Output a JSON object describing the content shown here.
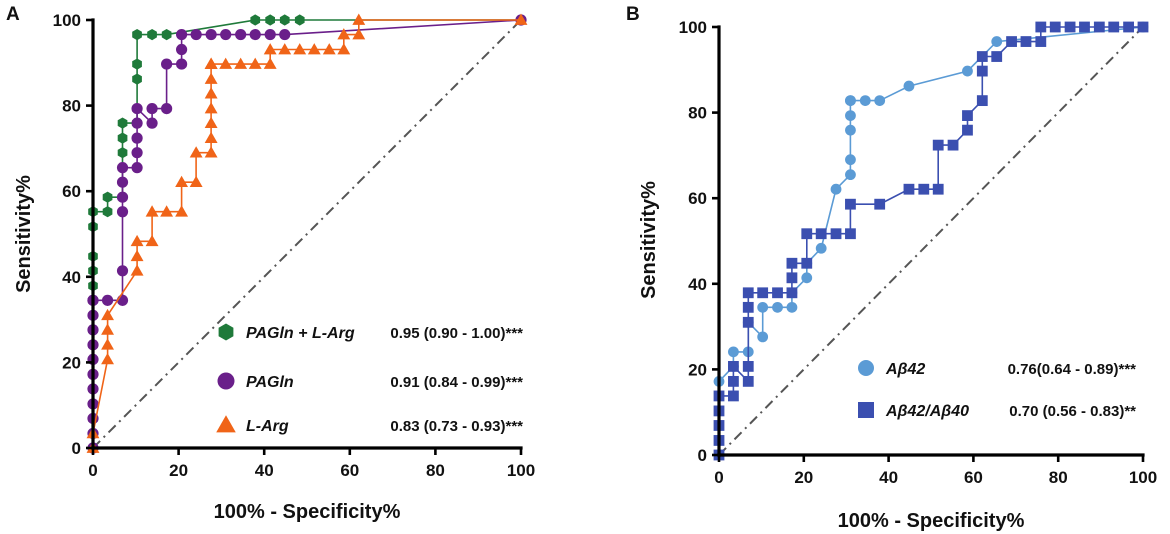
{
  "chart_data": [
    {
      "panel": "A",
      "type": "line",
      "xlabel": "100% - Specificity%",
      "ylabel": "Sensitivity%",
      "xlim": [
        0,
        100
      ],
      "ylim": [
        0,
        100
      ],
      "xticks": [
        "0",
        "20",
        "40",
        "60",
        "80",
        "100"
      ],
      "yticks": [
        "0",
        "20",
        "40",
        "60",
        "80",
        "100"
      ],
      "reference_line": "dash-dot diagonal",
      "legend_position": "bottom-right",
      "series": [
        {
          "name": "PAGln + L-Arg",
          "auc": "0.95 (0.90 - 1.00)***",
          "color": "#1f7a3a",
          "marker": "hexagon",
          "x": [
            0,
            0,
            0,
            0,
            0,
            0,
            0,
            0,
            0,
            0,
            0,
            0,
            0,
            0,
            0,
            0,
            3.4,
            3.4,
            6.9,
            6.9,
            6.9,
            6.9,
            6.9,
            10.3,
            10.3,
            10.3,
            10.3,
            10.3,
            13.8,
            17.2,
            37.9,
            41.4,
            44.8,
            48.3,
            100
          ],
          "y": [
            0,
            3.4,
            6.9,
            10.3,
            13.8,
            17.2,
            20.7,
            24.1,
            27.6,
            31,
            34.5,
            37.9,
            41.4,
            44.8,
            51.7,
            55.2,
            55.2,
            58.6,
            58.6,
            65.5,
            69,
            72.4,
            75.9,
            75.9,
            79.3,
            86.2,
            89.7,
            96.6,
            96.6,
            96.6,
            100,
            100,
            100,
            100,
            100
          ]
        },
        {
          "name": "PAGln",
          "auc": "0.91 (0.84 - 0.99)***",
          "color": "#6a1f8a",
          "marker": "circle",
          "x": [
            0,
            0,
            0,
            0,
            0,
            0,
            0,
            0,
            0,
            0,
            0,
            0,
            3.4,
            6.9,
            6.9,
            6.9,
            6.9,
            6.9,
            6.9,
            10.3,
            10.3,
            10.3,
            10.3,
            10.3,
            13.8,
            13.8,
            17.2,
            17.2,
            20.7,
            20.7,
            20.7,
            24.1,
            27.6,
            31,
            34.5,
            37.9,
            41.4,
            44.8,
            100
          ],
          "y": [
            0,
            3.4,
            6.9,
            10.3,
            13.8,
            17.2,
            20.7,
            24.1,
            27.6,
            31,
            34.5,
            34.5,
            34.5,
            34.5,
            41.4,
            55.2,
            58.6,
            62.1,
            65.5,
            65.5,
            69,
            72.4,
            75.9,
            79.3,
            75.9,
            79.3,
            79.3,
            89.7,
            89.7,
            93.1,
            96.6,
            96.6,
            96.6,
            96.6,
            96.6,
            96.6,
            96.6,
            96.6,
            100
          ]
        },
        {
          "name": "L-Arg",
          "auc": "0.83 (0.73 - 0.93)***",
          "color": "#f06418",
          "marker": "triangle",
          "x": [
            0,
            0,
            3.4,
            3.4,
            3.4,
            3.4,
            10.3,
            10.3,
            10.3,
            13.8,
            13.8,
            17.2,
            20.7,
            20.7,
            24.1,
            24.1,
            27.6,
            27.6,
            27.6,
            27.6,
            27.6,
            27.6,
            27.6,
            27.6,
            27.6,
            31,
            34.5,
            37.9,
            41.4,
            41.4,
            44.8,
            48.3,
            51.7,
            55.2,
            58.6,
            58.6,
            62.1,
            62.1,
            100
          ],
          "y": [
            0,
            3.4,
            20.7,
            24.1,
            27.6,
            31,
            41.4,
            44.8,
            48.3,
            48.3,
            55.2,
            55.2,
            55.2,
            62.1,
            62.1,
            69,
            69,
            72.4,
            75.9,
            79.3,
            82.8,
            86.2,
            89.7,
            89.7,
            89.7,
            89.7,
            89.7,
            89.7,
            89.7,
            93.1,
            93.1,
            93.1,
            93.1,
            93.1,
            93.1,
            96.6,
            96.6,
            100,
            100
          ]
        }
      ]
    },
    {
      "panel": "B",
      "type": "line",
      "xlabel": "100% - Specificity%",
      "ylabel": "Sensitivity%",
      "xlim": [
        0,
        100
      ],
      "ylim": [
        0,
        100
      ],
      "xticks": [
        "0",
        "20",
        "40",
        "60",
        "80",
        "100"
      ],
      "yticks": [
        "0",
        "20",
        "40",
        "60",
        "80",
        "100"
      ],
      "reference_line": "dash-dot diagonal",
      "legend_position": "bottom-right",
      "series": [
        {
          "name": "Aβ42",
          "auc": "0.76(0.64 - 0.89)***",
          "color": "#5b9bd5",
          "marker": "circle",
          "x": [
            0,
            0,
            3.4,
            3.4,
            6.9,
            6.9,
            10.3,
            10.3,
            13.8,
            17.2,
            17.2,
            20.7,
            20.7,
            24.1,
            27.6,
            31,
            31,
            31,
            31,
            31,
            31,
            34.5,
            37.9,
            44.8,
            58.6,
            65.5,
            100
          ],
          "y": [
            0,
            17.2,
            20.7,
            24.1,
            24.1,
            31,
            27.6,
            34.5,
            34.5,
            34.5,
            37.9,
            41.4,
            44.8,
            48.3,
            62.1,
            65.5,
            69,
            75.9,
            79.3,
            82.8,
            82.8,
            82.8,
            82.8,
            86.2,
            89.7,
            96.6,
            100
          ]
        },
        {
          "name": "Aβ42/Aβ40",
          "auc": "0.70 (0.56 - 0.83)**",
          "color": "#3b4fb0",
          "marker": "square",
          "x": [
            0,
            0,
            0,
            0,
            0,
            3.4,
            3.4,
            3.4,
            6.9,
            6.9,
            6.9,
            6.9,
            6.9,
            10.3,
            13.8,
            17.2,
            17.2,
            17.2,
            20.7,
            20.7,
            24.1,
            27.6,
            31,
            31,
            37.9,
            44.8,
            48.3,
            51.7,
            51.7,
            55.2,
            58.6,
            58.6,
            62.1,
            62.1,
            62.1,
            65.5,
            69,
            72.4,
            75.9,
            75.9,
            79.3,
            82.8,
            86.2,
            89.7,
            93.1,
            96.6,
            100
          ],
          "y": [
            0,
            3.4,
            6.9,
            10.3,
            13.8,
            13.8,
            17.2,
            20.7,
            17.2,
            20.7,
            31,
            34.5,
            37.9,
            37.9,
            37.9,
            37.9,
            41.4,
            44.8,
            44.8,
            51.7,
            51.7,
            51.7,
            51.7,
            58.6,
            58.6,
            62.1,
            62.1,
            62.1,
            72.4,
            72.4,
            75.9,
            79.3,
            82.8,
            89.7,
            93.1,
            93.1,
            96.6,
            96.6,
            96.6,
            100,
            100,
            100,
            100,
            100,
            100,
            100,
            100
          ]
        }
      ]
    }
  ]
}
